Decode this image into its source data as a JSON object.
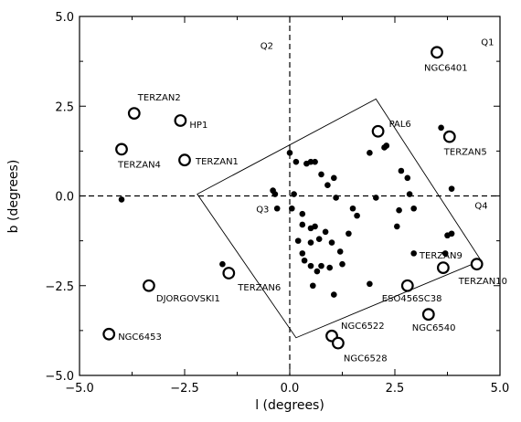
{
  "chart_data": {
    "type": "scatter",
    "xlabel": "l (degrees)",
    "ylabel": "b (degrees)",
    "xlim": [
      -5.0,
      5.0
    ],
    "ylim": [
      -5.0,
      5.0
    ],
    "grid": false,
    "x_ticks": [
      {
        "value": -5.0,
        "label": "−5.0"
      },
      {
        "value": -2.5,
        "label": "−2.5"
      },
      {
        "value": 0.0,
        "label": "0.0"
      },
      {
        "value": 2.5,
        "label": "2.5"
      },
      {
        "value": 5.0,
        "label": "5.0"
      }
    ],
    "y_ticks": [
      {
        "value": -5.0,
        "label": "−5.0"
      },
      {
        "value": -2.5,
        "label": "−2.5"
      },
      {
        "value": 0.0,
        "label": "0.0"
      },
      {
        "value": 2.5,
        "label": "2.5"
      },
      {
        "value": 5.0,
        "label": "5.0"
      }
    ],
    "quadrant_labels": [
      {
        "text": "Q1",
        "x": 4.55,
        "y": 4.3
      },
      {
        "text": "Q2",
        "x": -0.7,
        "y": 4.2
      },
      {
        "text": "Q3",
        "x": -0.8,
        "y": -0.35
      },
      {
        "text": "Q4",
        "x": 4.4,
        "y": -0.25
      }
    ],
    "region_polygon": [
      [
        -2.2,
        0.05
      ],
      [
        2.05,
        2.7
      ],
      [
        4.55,
        -1.8
      ],
      [
        0.15,
        -3.95
      ]
    ],
    "named_clusters": [
      {
        "name": "NGC6401",
        "x": 3.5,
        "y": 4.0
      },
      {
        "name": "TERZAN2",
        "x": -3.7,
        "y": 2.3
      },
      {
        "name": "HP1",
        "x": -2.6,
        "y": 2.1
      },
      {
        "name": "TERZAN4",
        "x": -4.0,
        "y": 1.3
      },
      {
        "name": "TERZAN1",
        "x": -2.5,
        "y": 1.0
      },
      {
        "name": "PAL6",
        "x": 2.1,
        "y": 1.8
      },
      {
        "name": "TERZAN5",
        "x": 3.8,
        "y": 1.65
      },
      {
        "name": "TERZAN6",
        "x": -1.45,
        "y": -2.15
      },
      {
        "name": "DJORGOVSKI1",
        "x": -3.35,
        "y": -2.5
      },
      {
        "name": "TERZAN9",
        "x": 3.65,
        "y": -2.0
      },
      {
        "name": "TERZAN10",
        "x": 4.45,
        "y": -1.9
      },
      {
        "name": "ESO456SC38",
        "x": 2.8,
        "y": -2.5
      },
      {
        "name": "NGC6540",
        "x": 3.3,
        "y": -3.3
      },
      {
        "name": "NGC6522",
        "x": 1.0,
        "y": -3.9
      },
      {
        "name": "NGC6528",
        "x": 1.15,
        "y": -4.1
      },
      {
        "name": "NGC6453",
        "x": -4.3,
        "y": -3.85
      }
    ],
    "points": [
      [
        -4.0,
        -0.1
      ],
      [
        -1.6,
        -1.9
      ],
      [
        0.0,
        1.2
      ],
      [
        0.15,
        0.95
      ],
      [
        0.4,
        0.9
      ],
      [
        0.6,
        0.95
      ],
      [
        0.5,
        0.95
      ],
      [
        0.75,
        0.6
      ],
      [
        0.9,
        0.3
      ],
      [
        1.1,
        -0.05
      ],
      [
        1.05,
        0.5
      ],
      [
        -0.4,
        0.15
      ],
      [
        -0.35,
        0.05
      ],
      [
        0.1,
        0.05
      ],
      [
        -0.3,
        -0.35
      ],
      [
        0.05,
        -0.35
      ],
      [
        0.3,
        -0.5
      ],
      [
        0.3,
        -0.8
      ],
      [
        0.5,
        -0.9
      ],
      [
        0.6,
        -0.85
      ],
      [
        0.7,
        -1.2
      ],
      [
        0.85,
        -1.0
      ],
      [
        1.0,
        -1.3
      ],
      [
        0.2,
        -1.25
      ],
      [
        0.5,
        -1.3
      ],
      [
        0.3,
        -1.6
      ],
      [
        1.2,
        -1.55
      ],
      [
        1.4,
        -1.05
      ],
      [
        1.6,
        -0.55
      ],
      [
        1.5,
        -0.35
      ],
      [
        0.95,
        -2.0
      ],
      [
        0.75,
        -1.95
      ],
      [
        0.5,
        -1.95
      ],
      [
        0.35,
        -1.8
      ],
      [
        0.65,
        -2.1
      ],
      [
        0.55,
        -2.5
      ],
      [
        1.05,
        -2.75
      ],
      [
        1.25,
        -1.9
      ],
      [
        1.9,
        -2.45
      ],
      [
        1.9,
        1.2
      ],
      [
        2.25,
        1.35
      ],
      [
        2.3,
        1.4
      ],
      [
        2.65,
        0.7
      ],
      [
        2.8,
        0.5
      ],
      [
        2.85,
        0.05
      ],
      [
        2.05,
        -0.05
      ],
      [
        2.95,
        -0.35
      ],
      [
        2.6,
        -0.4
      ],
      [
        2.55,
        -0.85
      ],
      [
        3.6,
        1.9
      ],
      [
        3.85,
        0.2
      ],
      [
        3.85,
        -1.05
      ],
      [
        3.75,
        -1.1
      ],
      [
        2.95,
        -1.6
      ],
      [
        3.7,
        -1.6
      ]
    ]
  }
}
